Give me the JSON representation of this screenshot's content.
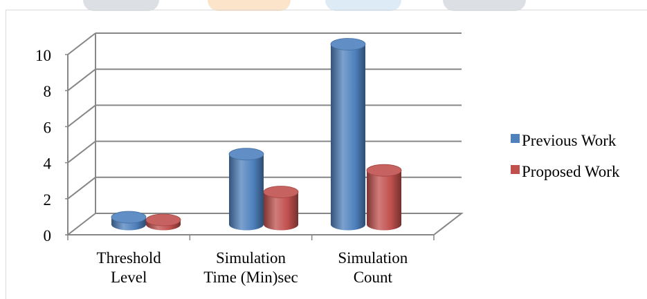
{
  "chart_data": {
    "type": "bar",
    "style": "3d-cylinder",
    "categories": [
      [
        "Threshold",
        "Level"
      ],
      [
        "Simulation",
        "Time (Min)sec"
      ],
      [
        "Simulation",
        "Count"
      ]
    ],
    "series": [
      {
        "name": "Previous Work",
        "color": "#4f81bd",
        "values": [
          0.4,
          3.9,
          10.0
        ]
      },
      {
        "name": "Proposed Work",
        "color": "#c0504d",
        "values": [
          0.25,
          1.8,
          3.0
        ]
      }
    ],
    "yticks": [
      "0",
      "2",
      "4",
      "6",
      "8",
      "10"
    ],
    "ylim": [
      0,
      10
    ],
    "grid": true,
    "legend_position": "right"
  }
}
